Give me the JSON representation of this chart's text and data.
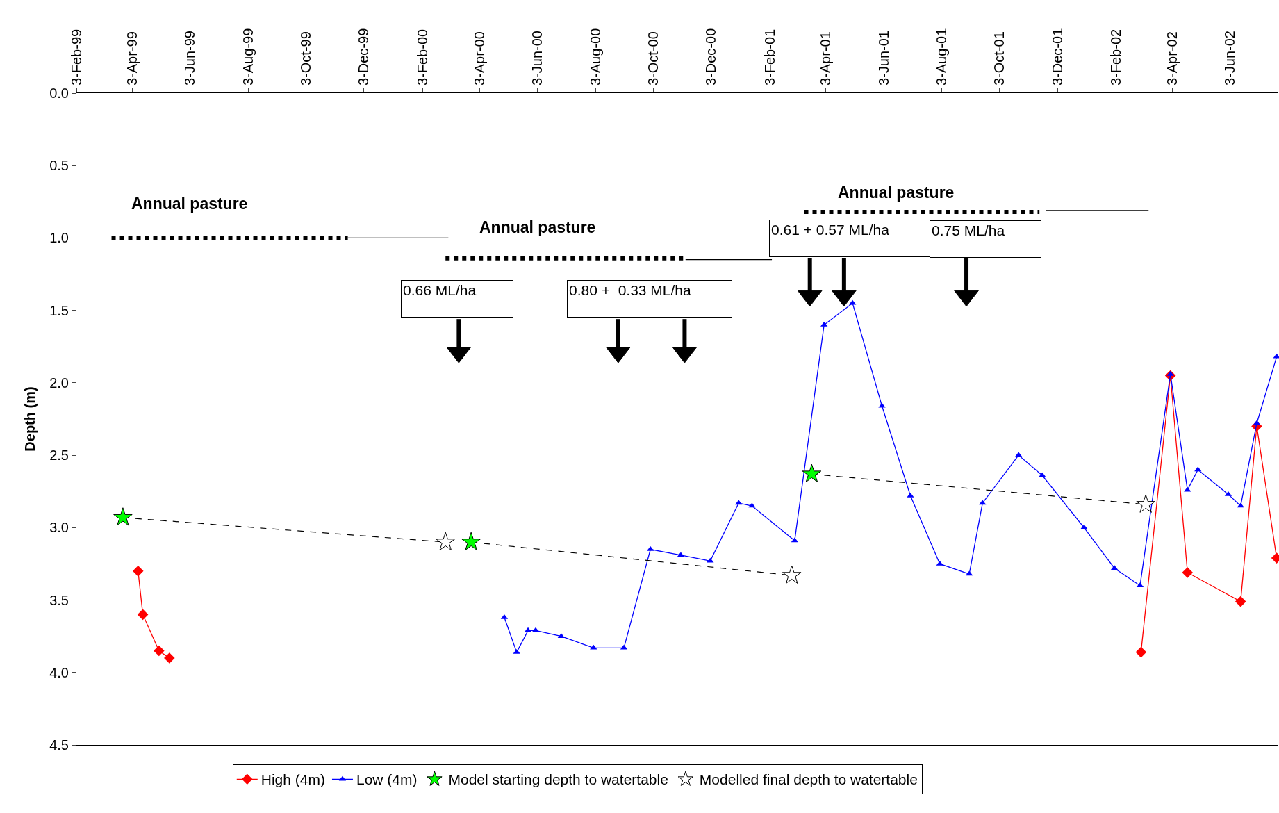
{
  "chart_data": {
    "type": "line",
    "ylabel": "Depth (m)",
    "xlim": [
      "1999-02-03",
      "2002-07-23"
    ],
    "xticks": [
      {
        "value": "1999-02-03",
        "label": "3-Feb-99"
      },
      {
        "value": "1999-04-03",
        "label": "3-Apr-99"
      },
      {
        "value": "1999-06-03",
        "label": "3-Jun-99"
      },
      {
        "value": "1999-08-03",
        "label": "3-Aug-99"
      },
      {
        "value": "1999-10-03",
        "label": "3-Oct-99"
      },
      {
        "value": "1999-12-03",
        "label": "3-Dec-99"
      },
      {
        "value": "2000-02-03",
        "label": "3-Feb-00"
      },
      {
        "value": "2000-04-03",
        "label": "3-Apr-00"
      },
      {
        "value": "2000-06-03",
        "label": "3-Jun-00"
      },
      {
        "value": "2000-08-03",
        "label": "3-Aug-00"
      },
      {
        "value": "2000-10-03",
        "label": "3-Oct-00"
      },
      {
        "value": "2000-12-03",
        "label": "3-Dec-00"
      },
      {
        "value": "2001-02-03",
        "label": "3-Feb-01"
      },
      {
        "value": "2001-04-03",
        "label": "3-Apr-01"
      },
      {
        "value": "2001-06-03",
        "label": "3-Jun-01"
      },
      {
        "value": "2001-08-03",
        "label": "3-Aug-01"
      },
      {
        "value": "2001-10-03",
        "label": "3-Oct-01"
      },
      {
        "value": "2001-12-03",
        "label": "3-Dec-01"
      },
      {
        "value": "2002-02-03",
        "label": "3-Feb-02"
      },
      {
        "value": "2002-04-03",
        "label": "3-Apr-02"
      },
      {
        "value": "2002-06-03",
        "label": "3-Jun-02"
      }
    ],
    "ylim": [
      4.5,
      0
    ],
    "yticks": [
      {
        "value": 0,
        "label": "0.0"
      },
      {
        "value": 0.5,
        "label": "0.5"
      },
      {
        "value": 1,
        "label": "1.0"
      },
      {
        "value": 1.5,
        "label": "1.5"
      },
      {
        "value": 2,
        "label": "2.0"
      },
      {
        "value": 2.5,
        "label": "2.5"
      },
      {
        "value": 3,
        "label": "3.0"
      },
      {
        "value": 3.5,
        "label": "3.5"
      },
      {
        "value": 4,
        "label": "4.0"
      },
      {
        "value": 4.5,
        "label": "4.5"
      }
    ],
    "legend": "bottom",
    "series": [
      {
        "name": "High (4m)",
        "color": "#ff0000",
        "marker": "diamond",
        "x": [
          "1999-04-09",
          "1999-04-14",
          "1999-05-01",
          "1999-05-12",
          null,
          "2002-03-01",
          "2002-04-01",
          "2002-04-19",
          "2002-06-14",
          "2002-07-01",
          "2002-07-22"
        ],
        "values": [
          3.3,
          3.6,
          3.85,
          3.9,
          null,
          3.86,
          1.95,
          3.31,
          3.51,
          2.3,
          3.21
        ]
      },
      {
        "name": "Low (4m)",
        "color": "#0000ff",
        "marker": "triangle",
        "x": [
          "2000-04-29",
          "2000-05-12",
          "2000-05-24",
          "2000-06-01",
          "2000-06-28",
          "2000-08-01",
          "2000-09-02",
          "2000-09-30",
          "2000-11-01",
          "2000-12-02",
          "2001-01-01",
          "2001-01-15",
          "2001-03-01",
          "2001-04-01",
          "2001-05-01",
          "2001-06-01",
          "2001-07-01",
          "2001-08-01",
          "2001-09-01",
          "2001-09-15",
          "2001-10-23",
          "2001-11-17",
          "2001-12-31",
          "2002-02-01",
          "2002-02-28",
          "2002-04-01",
          "2002-04-19",
          "2002-04-30",
          "2002-06-01",
          "2002-06-14",
          "2002-07-01",
          "2002-07-22"
        ],
        "values": [
          3.62,
          3.86,
          3.71,
          3.71,
          3.75,
          3.83,
          3.83,
          3.15,
          3.19,
          3.23,
          2.83,
          2.85,
          3.09,
          1.6,
          1.45,
          2.16,
          2.78,
          3.25,
          3.32,
          2.83,
          2.5,
          2.64,
          3.0,
          3.28,
          3.4,
          1.94,
          2.74,
          2.6,
          2.77,
          2.85,
          2.28,
          1.82
        ]
      },
      {
        "color": "#000000",
        "line_style": "dashed",
        "marker": "none",
        "x": [
          "1999-03-24",
          "2000-02-27"
        ],
        "values": [
          2.93,
          3.1
        ]
      },
      {
        "color": "#000000",
        "line_style": "dashed",
        "marker": "none",
        "x": [
          "2000-03-25",
          "2001-02-26"
        ],
        "values": [
          3.1,
          3.33
        ]
      },
      {
        "color": "#000000",
        "line_style": "dashed",
        "marker": "none",
        "x": [
          "2001-03-19",
          "2002-03-06"
        ],
        "values": [
          2.63,
          2.84
        ]
      },
      {
        "color": "#000000",
        "line_style": "dotted",
        "marker": "none",
        "x": [
          "1999-03-12",
          "1999-11-16"
        ],
        "values": [
          1.0,
          1.0
        ]
      },
      {
        "color": "#000000",
        "line_style": "solid",
        "marker": "none",
        "x": [
          "1999-11-16",
          "2000-03-01"
        ],
        "values": [
          1.0,
          1.0
        ]
      },
      {
        "color": "#000000",
        "line_style": "dotted",
        "marker": "none",
        "x": [
          "2000-02-27",
          "2000-11-06"
        ],
        "values": [
          1.14,
          1.14
        ]
      },
      {
        "color": "#000000",
        "line_style": "solid",
        "marker": "none",
        "x": [
          "2000-11-06",
          "2001-02-05"
        ],
        "values": [
          1.15,
          1.15
        ]
      },
      {
        "color": "#000000",
        "line_style": "dotted",
        "marker": "none",
        "x": [
          "2001-03-11",
          "2001-11-14"
        ],
        "values": [
          0.82,
          0.82
        ]
      },
      {
        "color": "#000000",
        "line_style": "solid",
        "marker": "none",
        "x": [
          "2001-11-21",
          "2002-03-09"
        ],
        "values": [
          0.81,
          0.81
        ]
      },
      {
        "type": "scatter",
        "color": "#000000",
        "marker": "triangle",
        "x": [
          "2000-03-12",
          "2000-08-27",
          "2000-11-05",
          "2001-03-17",
          "2001-04-22",
          "2001-08-29"
        ],
        "values": [
          1.79,
          1.79,
          1.79,
          1.4,
          1.4,
          1.4
        ],
        "errors": [
          [
            1.56,
            1.79
          ],
          [
            1.56,
            1.79
          ],
          [
            1.56,
            1.79
          ],
          [
            1.14,
            1.4
          ],
          [
            1.14,
            1.4
          ],
          [
            1.14,
            1.4
          ]
        ]
      },
      {
        "name": "Model starting depth to watertable",
        "type": "scatter",
        "color": "#00ff00",
        "marker": "star",
        "x": [
          "1999-03-24",
          "2000-03-25",
          "2001-03-19"
        ],
        "values": [
          2.93,
          3.1,
          2.63
        ]
      },
      {
        "name": "Modelled final depth to watertable",
        "type": "scatter",
        "color": "#ffffff",
        "marker": "star",
        "x": [
          "2000-02-27",
          "2001-02-26",
          "2002-03-06"
        ],
        "values": [
          3.1,
          3.33,
          2.84
        ]
      }
    ],
    "annotations": [
      "Annual pasture",
      "Annual pasture",
      "Annual pasture",
      "0.66 ML/ha",
      "0.80 +  0.33 ML/ha",
      "0.61 + 0.57 ML/ha",
      "0.75 ML/ha"
    ]
  }
}
